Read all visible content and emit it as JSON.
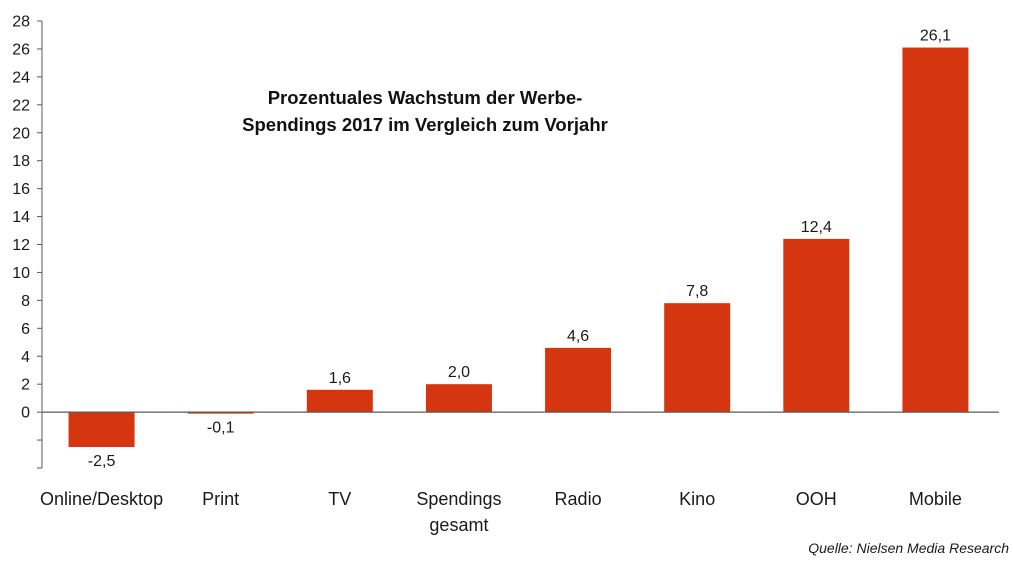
{
  "chart_data": {
    "type": "bar",
    "title_lines": [
      "Prozentuales Wachstum der Werbe-",
      "Spendings 2017 im Vergleich zum Vorjahr"
    ],
    "categories": [
      [
        "Online/Desktop"
      ],
      [
        "Print"
      ],
      [
        "TV"
      ],
      [
        "Spendings",
        "gesamt"
      ],
      [
        "Radio"
      ],
      [
        "Kino"
      ],
      [
        "OOH"
      ],
      [
        "Mobile"
      ]
    ],
    "values": [
      -2.5,
      -0.1,
      1.6,
      2.0,
      4.6,
      7.8,
      12.4,
      26.1
    ],
    "data_labels": [
      "-2,5",
      "-0,1",
      "1,6",
      "2,0",
      "4,6",
      "7,8",
      "12,4",
      "26,1"
    ],
    "xlabel": "",
    "ylabel": "",
    "ylim": [
      -4,
      28
    ],
    "y_ticks": [
      -4,
      -2,
      0,
      2,
      4,
      6,
      8,
      10,
      12,
      14,
      16,
      18,
      20,
      22,
      24,
      26,
      28
    ],
    "y_tick_labels": [
      "",
      "",
      "0",
      "2",
      "4",
      "6",
      "8",
      "10",
      "12",
      "14",
      "16",
      "18",
      "20",
      "22",
      "24",
      "26",
      "28"
    ],
    "grid": false,
    "legend": "none",
    "bar_color": "#d5360f",
    "axis_color": "#595959",
    "source": "Quelle: Nielsen Media Research"
  }
}
